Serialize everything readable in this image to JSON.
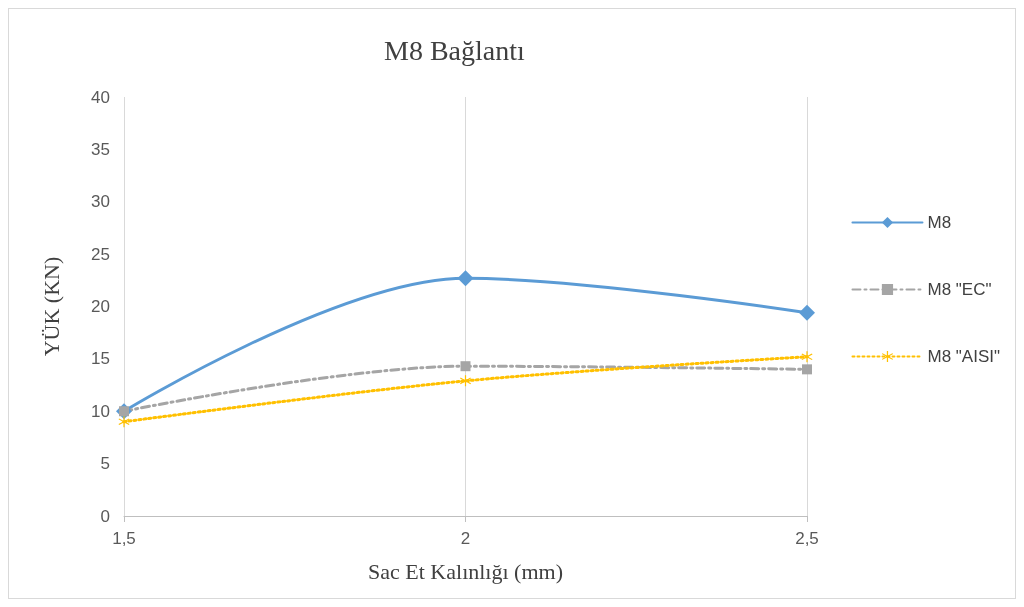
{
  "chart_data": {
    "type": "line",
    "title": "M8 Bağlantı",
    "xlabel": "Sac Et Kalınlığı (mm)",
    "ylabel": "YÜK (KN)",
    "x": [
      1.5,
      2,
      2.5
    ],
    "series": [
      {
        "name": "M8",
        "color": "#5b9bd5",
        "values": [
          10,
          22.7,
          19.4
        ],
        "marker": "diamond",
        "line_style": "solid"
      },
      {
        "name": "M8 \"EC\"",
        "color": "#a5a5a5",
        "values": [
          10,
          14.3,
          14
        ],
        "marker": "square",
        "line_style": "dashed"
      },
      {
        "name": "M8 \"AISI\"",
        "color": "#ffc000",
        "values": [
          9,
          12.9,
          15.2
        ],
        "marker": "cross",
        "line_style": "dotted"
      }
    ],
    "xlim": [
      1.5,
      2.5
    ],
    "xticks": [
      {
        "value": 1.5,
        "label": "1,5"
      },
      2,
      {
        "value": 2.5,
        "label": "2,5"
      }
    ],
    "ylim": [
      0,
      40
    ],
    "yticks": [
      0,
      5,
      10,
      15,
      20,
      25,
      30,
      35,
      40
    ],
    "grid": "x",
    "legend": "right"
  }
}
